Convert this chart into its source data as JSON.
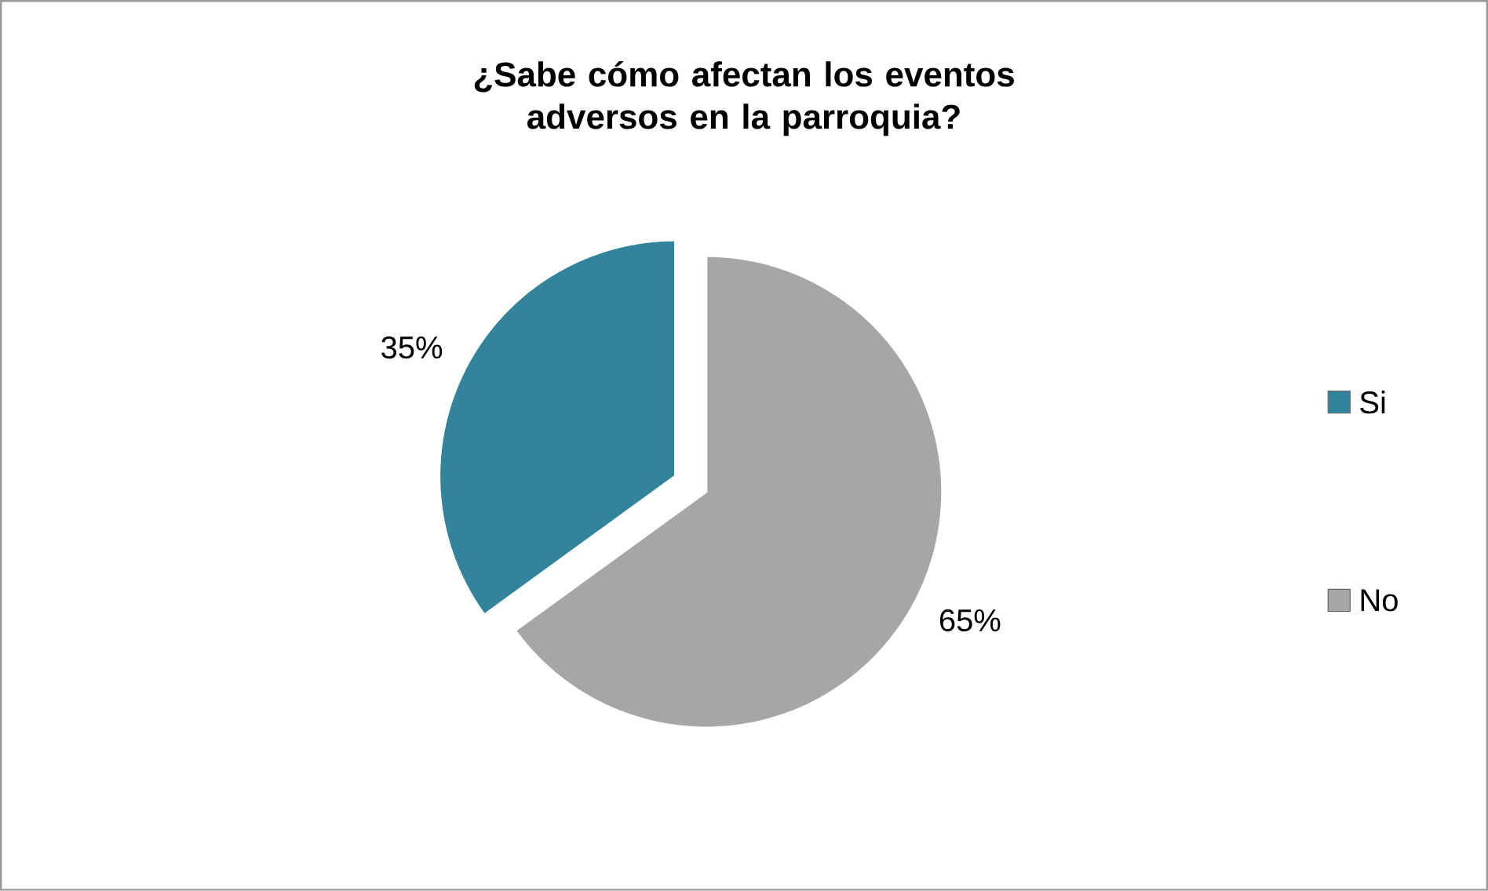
{
  "chart_data": {
    "type": "pie",
    "title": "¿Sabe cómo afectan los eventos adversos en la parroquia?",
    "categories": [
      "Si",
      "No"
    ],
    "values": [
      35,
      65
    ],
    "value_labels": [
      "35%",
      "65%"
    ],
    "colors": [
      "#31849b",
      "#a6a6a6"
    ],
    "legend": "right"
  }
}
